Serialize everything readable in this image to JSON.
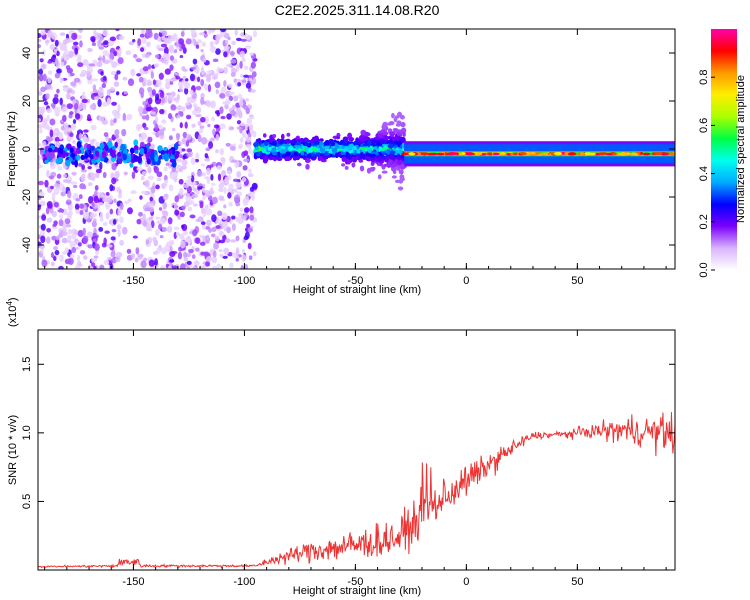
{
  "title": "C2E2.2025.311.14.08.R20",
  "chart_data": [
    {
      "type": "heatmap",
      "name": "spectrogram",
      "xlabel": "Height of straight line (km)",
      "ylabel": "Frequency (Hz)",
      "xlim": [
        -193,
        94
      ],
      "ylim": [
        -50,
        50
      ],
      "x_ticks": [
        -150,
        -100,
        -50,
        0,
        50
      ],
      "x_tick_labels": [
        "-150",
        "-100",
        "-50",
        "0",
        "50"
      ],
      "y_ticks": [
        -40,
        -20,
        0,
        20,
        40
      ],
      "y_tick_labels": [
        "-40",
        "-20",
        "0",
        "20",
        "40"
      ],
      "colorbar": {
        "label": "Normalized spectral amplitude",
        "range": [
          0,
          1
        ],
        "ticks": [
          0.0,
          0.2,
          0.4,
          0.6,
          0.8
        ],
        "tick_labels": [
          "0.0",
          "0.2",
          "0.4",
          "0.6",
          "0.8"
        ],
        "colors": [
          "#ffffff",
          "#d9b3ff",
          "#7a00ff",
          "#0000ff",
          "#00aaff",
          "#00ffee",
          "#00ff44",
          "#aaff00",
          "#ffee00",
          "#ff9900",
          "#ff0000",
          "#ff00aa"
        ]
      },
      "segments": [
        {
          "x_range": [
            -193,
            -95
          ],
          "center_hz": 0,
          "spread_hz": 50,
          "description": "scattered noise"
        },
        {
          "x_range": [
            -95,
            -28
          ],
          "center_hz": 0,
          "spread_hz": 5,
          "description": "band"
        },
        {
          "x_range": [
            -28,
            94
          ],
          "center_hz": -2,
          "spread_hz": 2,
          "description": "strong line"
        }
      ]
    },
    {
      "type": "line",
      "name": "snr",
      "xlabel": "Height of straight line (km)",
      "ylabel": "SNR (10 * v/v)",
      "y_multiplier_label": "(x10",
      "y_multiplier_exp": "4",
      "y_multiplier_close": ")",
      "xlim": [
        -193,
        94
      ],
      "ylim": [
        0,
        17500
      ],
      "x_ticks": [
        -150,
        -100,
        -50,
        0,
        50
      ],
      "x_tick_labels": [
        "-150",
        "-100",
        "-50",
        "0",
        "50"
      ],
      "y_ticks": [
        5000,
        10000,
        15000
      ],
      "y_tick_labels": [
        "0.5",
        "1.0",
        "1.5"
      ],
      "color": "#ee3333",
      "profile": [
        {
          "x": -193,
          "y": 250,
          "noise": 80
        },
        {
          "x": -150,
          "y": 300,
          "noise": 150
        },
        {
          "x": -95,
          "y": 300,
          "noise": 120
        },
        {
          "x": -88,
          "y": 700,
          "noise": 500
        },
        {
          "x": -70,
          "y": 1400,
          "noise": 1200
        },
        {
          "x": -50,
          "y": 1800,
          "noise": 1700
        },
        {
          "x": -30,
          "y": 2400,
          "noise": 2000
        },
        {
          "x": -20,
          "y": 4000,
          "noise": 2400
        },
        {
          "x": 0,
          "y": 6500,
          "noise": 1700
        },
        {
          "x": 20,
          "y": 8800,
          "noise": 900
        },
        {
          "x": 30,
          "y": 9800,
          "noise": 400
        },
        {
          "x": 45,
          "y": 9900,
          "noise": 400
        },
        {
          "x": 55,
          "y": 10100,
          "noise": 700
        },
        {
          "x": 70,
          "y": 10200,
          "noise": 1400
        },
        {
          "x": 92,
          "y": 10000,
          "noise": 2200
        }
      ]
    }
  ]
}
